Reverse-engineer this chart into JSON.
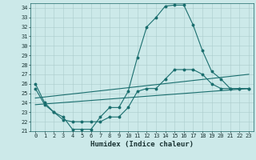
{
  "title": "",
  "xlabel": "Humidex (Indice chaleur)",
  "bg_color": "#cce9e9",
  "grid_color": "#aacccc",
  "line_color": "#1a6e6e",
  "xlim": [
    -0.5,
    23.5
  ],
  "ylim": [
    21,
    34.5
  ],
  "xticks": [
    0,
    1,
    2,
    3,
    4,
    5,
    6,
    7,
    8,
    9,
    10,
    11,
    12,
    13,
    14,
    15,
    16,
    17,
    18,
    19,
    20,
    21,
    22,
    23
  ],
  "yticks": [
    21,
    22,
    23,
    24,
    25,
    26,
    27,
    28,
    29,
    30,
    31,
    32,
    33,
    34
  ],
  "line1_x": [
    0,
    1,
    2,
    3,
    4,
    5,
    6,
    7,
    8,
    9,
    10,
    11,
    12,
    13,
    14,
    15,
    16,
    17,
    18,
    19,
    20,
    21,
    22,
    23
  ],
  "line1_y": [
    26.0,
    24.0,
    23.0,
    22.5,
    21.2,
    21.2,
    21.2,
    22.5,
    23.5,
    23.5,
    25.2,
    28.8,
    32.0,
    33.0,
    34.2,
    34.3,
    34.3,
    32.2,
    29.5,
    27.3,
    26.5,
    25.5,
    25.5,
    25.5
  ],
  "line2_x": [
    0,
    1,
    2,
    3,
    4,
    5,
    6,
    7,
    8,
    9,
    10,
    11,
    12,
    13,
    14,
    15,
    16,
    17,
    18,
    19,
    20,
    21,
    22,
    23
  ],
  "line2_y": [
    25.5,
    23.8,
    23.0,
    22.2,
    22.0,
    22.0,
    22.0,
    22.0,
    22.5,
    22.5,
    23.5,
    25.2,
    25.5,
    25.5,
    26.5,
    27.5,
    27.5,
    27.5,
    27.0,
    26.0,
    25.5,
    25.5,
    25.5,
    25.5
  ],
  "line3_x": [
    0,
    23
  ],
  "line3_y": [
    23.8,
    25.5
  ],
  "line4_x": [
    0,
    23
  ],
  "line4_y": [
    24.5,
    27.0
  ],
  "font_family": "monospace",
  "xlabel_fontsize": 6.5,
  "tick_fontsize": 5.0,
  "lw": 0.8,
  "ms": 1.8
}
